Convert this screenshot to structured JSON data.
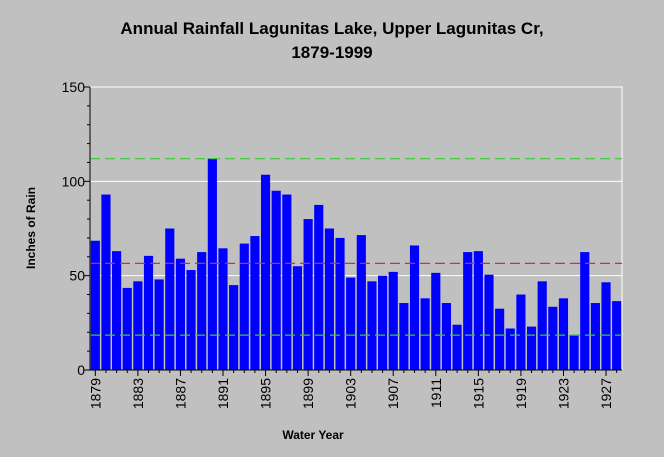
{
  "chart_data": {
    "type": "bar",
    "title_line1": "Annual Rainfall Lagunitas Lake, Upper Lagunitas Cr,",
    "title_line2": "1879-1999",
    "xlabel": "Water Year",
    "ylabel": "Inches of Rain",
    "ylim": [
      0,
      150
    ],
    "y_ticks": [
      0,
      50,
      100,
      150
    ],
    "x_tick_labels": [
      "1879",
      "1883",
      "1887",
      "1891",
      "1895",
      "1899",
      "1903",
      "1907",
      "1911",
      "1915",
      "1919",
      "1923",
      "1927"
    ],
    "categories": [
      1879,
      1880,
      1881,
      1882,
      1883,
      1884,
      1885,
      1886,
      1887,
      1888,
      1889,
      1890,
      1891,
      1892,
      1893,
      1894,
      1895,
      1896,
      1897,
      1898,
      1899,
      1900,
      1901,
      1902,
      1903,
      1904,
      1905,
      1906,
      1907,
      1908,
      1909,
      1910,
      1911,
      1912,
      1913,
      1914,
      1915,
      1916,
      1917,
      1918,
      1919,
      1920,
      1921,
      1922,
      1923,
      1924,
      1925,
      1926,
      1927,
      1928
    ],
    "values": [
      68.5,
      93,
      63,
      43.5,
      47,
      60.5,
      48,
      75,
      59,
      53,
      62.5,
      112,
      64.5,
      45,
      67,
      71,
      103.5,
      95,
      93,
      55,
      80,
      87.5,
      75,
      70,
      49,
      71.5,
      47,
      50,
      52,
      35.5,
      66,
      38,
      51.5,
      35.5,
      24,
      62.5,
      63,
      50.5,
      32.5,
      22,
      40,
      23,
      47,
      33.5,
      38,
      18.5,
      62.5,
      35.5,
      46.5,
      36.5
    ],
    "reference_lines": [
      {
        "value": 112,
        "color": "#33cc33",
        "style": "dashed"
      },
      {
        "value": 56.5,
        "color": "#cc3333",
        "style": "dashed"
      },
      {
        "value": 18.5,
        "color": "#33cc33",
        "style": "dashed"
      }
    ],
    "bar_color": "#0000ff",
    "grid": true
  }
}
